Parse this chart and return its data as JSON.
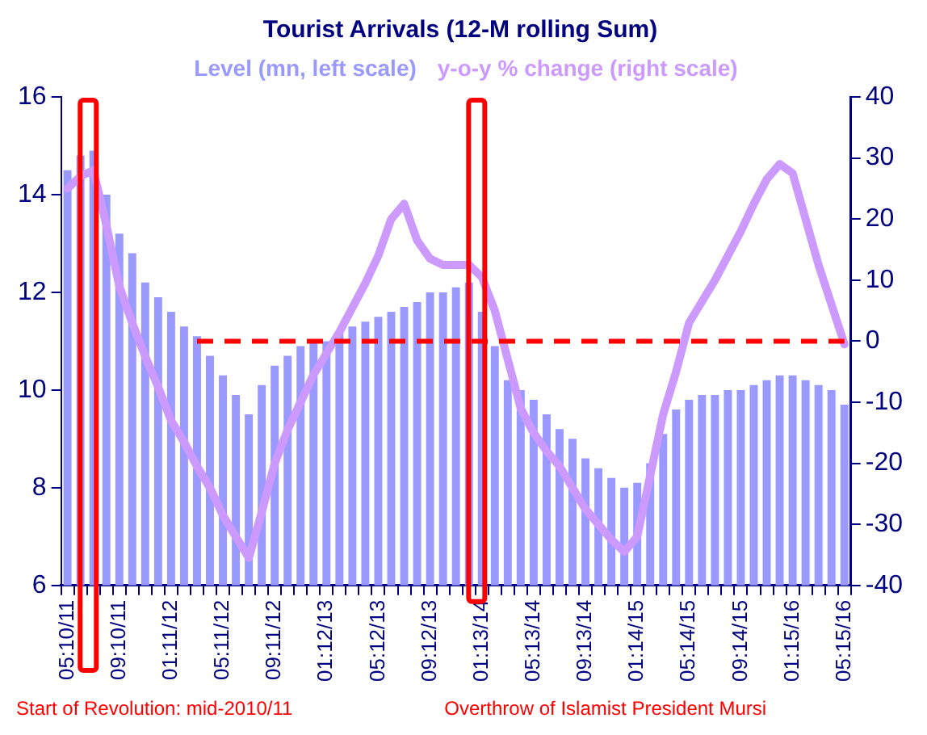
{
  "chart_data": {
    "type": "bar",
    "title": "Tourist Arrivals (12-M rolling Sum)",
    "categories": [
      "05:10/11",
      null,
      null,
      null,
      "09:10/11",
      null,
      null,
      null,
      "01:11/12",
      null,
      null,
      null,
      "05:11/12",
      null,
      null,
      null,
      "09:11/12",
      null,
      null,
      null,
      "01:12/13",
      null,
      null,
      null,
      "05:12/13",
      null,
      null,
      null,
      "09:12/13",
      null,
      null,
      null,
      "01:13/14",
      null,
      null,
      null,
      "05:13/14",
      null,
      null,
      null,
      "09:13/14",
      null,
      null,
      null,
      "01:14/15",
      null,
      null,
      null,
      "05:14/15",
      null,
      null,
      null,
      "09:14/15",
      null,
      null,
      null,
      "01:15/16",
      null,
      null,
      null,
      "05:15/16"
    ],
    "series": [
      {
        "name": "Level (mn, left scale)",
        "color": "#9999ff",
        "values": [
          14.5,
          14.8,
          14.9,
          14.0,
          13.2,
          12.8,
          12.2,
          11.9,
          11.6,
          11.3,
          11.1,
          10.7,
          10.3,
          9.9,
          9.5,
          10.1,
          10.5,
          10.7,
          10.9,
          11.0,
          11.0,
          11.2,
          11.3,
          11.4,
          11.5,
          11.6,
          11.7,
          11.8,
          12.0,
          12.0,
          12.1,
          12.2,
          11.6,
          10.9,
          10.2,
          10.0,
          9.8,
          9.5,
          9.2,
          9.0,
          8.6,
          8.4,
          8.2,
          8.0,
          8.1,
          8.5,
          9.1,
          9.6,
          9.8,
          9.9,
          9.9,
          10.0,
          10.0,
          10.1,
          10.2,
          10.3,
          10.3,
          10.2,
          10.1,
          10.0,
          9.7
        ]
      },
      {
        "name": "y-o-y % change (right scale)",
        "type": "line",
        "axis": "y2",
        "color": "#cc99ff",
        "values": [
          25,
          27,
          28,
          19,
          9,
          3,
          -2.5,
          -7.5,
          -13,
          -16.5,
          -20.5,
          -24,
          -28.5,
          -32,
          -35.5,
          -28,
          -20,
          -14.5,
          -10,
          -5.5,
          -2,
          1.5,
          5.5,
          9.5,
          14,
          20,
          22.5,
          16.5,
          13.5,
          12.5,
          12.5,
          12.5,
          10.5,
          5,
          -3,
          -11,
          -15,
          -18,
          -20.5,
          -24,
          -27.5,
          -30,
          -32.5,
          -34.5,
          -32,
          -22,
          -12,
          -5,
          3,
          6.5,
          10,
          14,
          18,
          22.5,
          26.5,
          29,
          27.5,
          20,
          12.5,
          6,
          -0.5
        ]
      }
    ],
    "ylim": [
      6,
      16
    ],
    "yticks": [
      6,
      8,
      10,
      12,
      14,
      16
    ],
    "y2lim": [
      -40,
      40
    ],
    "y2ticks": [
      -40,
      -30,
      -20,
      -10,
      0,
      10,
      20,
      30,
      40
    ],
    "ref_lines": [
      {
        "axis": "y2",
        "value": 0,
        "color": "#ff0000",
        "line_style": "dashed"
      }
    ],
    "annotations": [
      "Start of Revolution: mid-2010/11",
      "Overthrow of Islamist President Mursi"
    ],
    "legend": "top",
    "grid": false,
    "marker": "none"
  }
}
